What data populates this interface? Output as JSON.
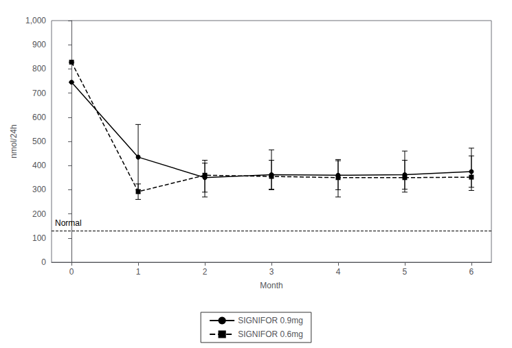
{
  "chart_data": {
    "type": "line",
    "xlabel": "Month",
    "ylabel": "nmol/24h",
    "x": [
      0,
      1,
      2,
      3,
      4,
      5,
      6
    ],
    "xlim": [
      -0.3,
      6.3
    ],
    "xticks": [
      0,
      1,
      2,
      3,
      4,
      5,
      6
    ],
    "ylim": [
      0,
      1000
    ],
    "yticks": [
      0,
      100,
      200,
      300,
      400,
      500,
      600,
      700,
      800,
      900,
      1000
    ],
    "grid": false,
    "legend": "bottom",
    "reference_line": {
      "y": 130,
      "label": "Normal"
    },
    "series": [
      {
        "name": "SIGNIFOR 0.9mg",
        "color": "#000000",
        "marker": "circle",
        "line_style": "solid",
        "values": [
          745,
          435,
          350,
          362,
          360,
          362,
          375
        ],
        "error_low": [
          0,
          135,
          60,
          60,
          60,
          60,
          65
        ],
        "error_high": [
          0,
          135,
          60,
          60,
          60,
          60,
          65
        ]
      },
      {
        "name": "SIGNIFOR 0.6mg",
        "color": "#000000",
        "marker": "square",
        "line_style": "dashed",
        "values": [
          828,
          292,
          360,
          355,
          350,
          350,
          352
        ],
        "error_low": [
          0,
          32,
          90,
          55,
          80,
          60,
          55
        ],
        "error_high": [
          0,
          32,
          62,
          110,
          75,
          110,
          120
        ]
      }
    ]
  }
}
